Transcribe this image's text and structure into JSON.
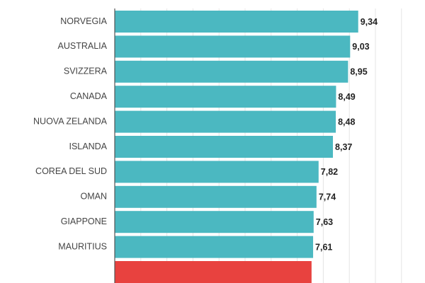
{
  "chart_data": {
    "type": "bar",
    "orientation": "horizontal",
    "categories": [
      "NORVEGIA",
      "AUSTRALIA",
      "SVIZZERA",
      "CANADA",
      "NUOVA ZELANDA",
      "ISLANDA",
      "COREA DEL SUD",
      "OMAN",
      "GIAPPONE",
      "MAURITIUS",
      ""
    ],
    "values": [
      9.34,
      9.03,
      8.95,
      8.49,
      8.48,
      8.37,
      7.82,
      7.74,
      7.63,
      7.61,
      7.55
    ],
    "value_labels": [
      "9,34",
      "9,03",
      "8,95",
      "8,49",
      "8,48",
      "8,37",
      "7,82",
      "7,74",
      "7,63",
      "7,61",
      ""
    ],
    "bar_colors": [
      "#4bb8c1",
      "#4bb8c1",
      "#4bb8c1",
      "#4bb8c1",
      "#4bb8c1",
      "#4bb8c1",
      "#4bb8c1",
      "#4bb8c1",
      "#4bb8c1",
      "#4bb8c1",
      "#e8423f"
    ],
    "xlim": [
      0,
      11
    ],
    "grid": true,
    "title": "",
    "xlabel": "",
    "ylabel": ""
  }
}
